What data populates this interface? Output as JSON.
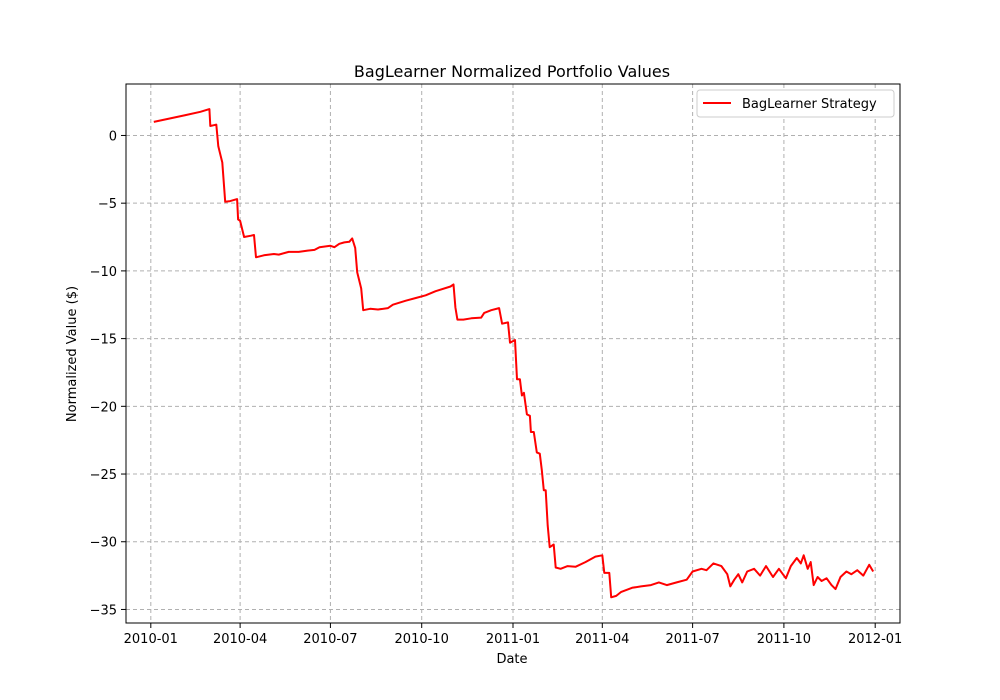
{
  "chart_data": {
    "type": "line",
    "title": "BagLearner Normalized Portfolio Values",
    "xlabel": "Date",
    "ylabel": "Normalized Value ($)",
    "xlim": [
      "2009-12-07",
      "2012-01-26"
    ],
    "ylim": [
      -36,
      3.8
    ],
    "grid": true,
    "legend_position": "top-right",
    "x_ticks": [
      "2010-01",
      "2010-04",
      "2010-07",
      "2010-10",
      "2011-01",
      "2011-04",
      "2011-07",
      "2011-10",
      "2012-01"
    ],
    "y_ticks": [
      0,
      -5,
      -10,
      -15,
      -20,
      -25,
      -30,
      -35
    ],
    "series": [
      {
        "name": "BagLearner Strategy",
        "color": "#ff0000",
        "points": [
          [
            "2010-01-04",
            1.0
          ],
          [
            "2010-01-20",
            1.25
          ],
          [
            "2010-02-05",
            1.5
          ],
          [
            "2010-02-20",
            1.75
          ],
          [
            "2010-03-01",
            1.95
          ],
          [
            "2010-03-02",
            0.7
          ],
          [
            "2010-03-05",
            0.75
          ],
          [
            "2010-03-08",
            0.8
          ],
          [
            "2010-03-10",
            -0.8
          ],
          [
            "2010-03-14",
            -2.0
          ],
          [
            "2010-03-17",
            -4.9
          ],
          [
            "2010-03-22",
            -4.85
          ],
          [
            "2010-03-29",
            -4.7
          ],
          [
            "2010-03-30",
            -6.2
          ],
          [
            "2010-04-01",
            -6.3
          ],
          [
            "2010-04-05",
            -7.5
          ],
          [
            "2010-04-12",
            -7.4
          ],
          [
            "2010-04-15",
            -7.35
          ],
          [
            "2010-04-17",
            -9.0
          ],
          [
            "2010-04-25",
            -8.85
          ],
          [
            "2010-05-05",
            -8.75
          ],
          [
            "2010-05-10",
            -8.8
          ],
          [
            "2010-05-20",
            -8.6
          ],
          [
            "2010-05-30",
            -8.6
          ],
          [
            "2010-06-08",
            -8.5
          ],
          [
            "2010-06-15",
            -8.45
          ],
          [
            "2010-06-20",
            -8.25
          ],
          [
            "2010-07-01",
            -8.15
          ],
          [
            "2010-07-05",
            -8.25
          ],
          [
            "2010-07-10",
            -8.0
          ],
          [
            "2010-07-15",
            -7.9
          ],
          [
            "2010-07-20",
            -7.85
          ],
          [
            "2010-07-23",
            -7.6
          ],
          [
            "2010-07-26",
            -8.3
          ],
          [
            "2010-07-28",
            -10.1
          ],
          [
            "2010-08-01",
            -11.3
          ],
          [
            "2010-08-03",
            -12.9
          ],
          [
            "2010-08-10",
            -12.8
          ],
          [
            "2010-08-18",
            -12.85
          ],
          [
            "2010-08-28",
            -12.75
          ],
          [
            "2010-09-02",
            -12.5
          ],
          [
            "2010-09-15",
            -12.2
          ],
          [
            "2010-09-25",
            -12.0
          ],
          [
            "2010-10-05",
            -11.8
          ],
          [
            "2010-10-15",
            -11.5
          ],
          [
            "2010-10-30",
            -11.15
          ],
          [
            "2010-11-02",
            -11.0
          ],
          [
            "2010-11-04",
            -12.7
          ],
          [
            "2010-11-06",
            -13.6
          ],
          [
            "2010-11-12",
            -13.6
          ],
          [
            "2010-11-20",
            -13.5
          ],
          [
            "2010-11-30",
            -13.45
          ],
          [
            "2010-12-03",
            -13.1
          ],
          [
            "2010-12-10",
            -12.9
          ],
          [
            "2010-12-18",
            -12.75
          ],
          [
            "2010-12-21",
            -13.9
          ],
          [
            "2010-12-27",
            -13.8
          ],
          [
            "2010-12-29",
            -15.3
          ],
          [
            "2011-01-03",
            -15.1
          ],
          [
            "2011-01-05",
            -18.0
          ],
          [
            "2011-01-08",
            -18.0
          ],
          [
            "2011-01-10",
            -19.2
          ],
          [
            "2011-01-12",
            -19.0
          ],
          [
            "2011-01-15",
            -20.6
          ],
          [
            "2011-01-18",
            -20.7
          ],
          [
            "2011-01-19",
            -21.9
          ],
          [
            "2011-01-22",
            -21.9
          ],
          [
            "2011-01-25",
            -23.4
          ],
          [
            "2011-01-28",
            -23.5
          ],
          [
            "2011-01-30",
            -24.7
          ],
          [
            "2011-02-01",
            -26.2
          ],
          [
            "2011-02-03",
            -26.2
          ],
          [
            "2011-02-05",
            -28.8
          ],
          [
            "2011-02-07",
            -30.4
          ],
          [
            "2011-02-11",
            -30.2
          ],
          [
            "2011-02-13",
            -31.9
          ],
          [
            "2011-02-18",
            -32.0
          ],
          [
            "2011-02-25",
            -31.8
          ],
          [
            "2011-03-05",
            -31.85
          ],
          [
            "2011-03-15",
            -31.5
          ],
          [
            "2011-03-25",
            -31.1
          ],
          [
            "2011-04-01",
            -31.0
          ],
          [
            "2011-04-03",
            -32.3
          ],
          [
            "2011-04-08",
            -32.3
          ],
          [
            "2011-04-10",
            -34.1
          ],
          [
            "2011-04-15",
            -34.0
          ],
          [
            "2011-04-20",
            -33.7
          ],
          [
            "2011-05-01",
            -33.4
          ],
          [
            "2011-05-10",
            -33.3
          ],
          [
            "2011-05-20",
            -33.2
          ],
          [
            "2011-05-28",
            -33.0
          ],
          [
            "2011-06-05",
            -33.2
          ],
          [
            "2011-06-15",
            -33.0
          ],
          [
            "2011-06-25",
            -32.8
          ],
          [
            "2011-07-01",
            -32.2
          ],
          [
            "2011-07-10",
            -32.0
          ],
          [
            "2011-07-15",
            -32.1
          ],
          [
            "2011-07-22",
            -31.6
          ],
          [
            "2011-07-30",
            -31.8
          ],
          [
            "2011-08-05",
            -32.4
          ],
          [
            "2011-08-08",
            -33.3
          ],
          [
            "2011-08-12",
            -32.8
          ],
          [
            "2011-08-16",
            -32.4
          ],
          [
            "2011-08-20",
            -33.0
          ],
          [
            "2011-08-25",
            -32.2
          ],
          [
            "2011-09-01",
            -32.0
          ],
          [
            "2011-09-07",
            -32.5
          ],
          [
            "2011-09-13",
            -31.8
          ],
          [
            "2011-09-20",
            -32.6
          ],
          [
            "2011-09-26",
            -32.0
          ],
          [
            "2011-10-03",
            -32.7
          ],
          [
            "2011-10-08",
            -31.8
          ],
          [
            "2011-10-14",
            -31.2
          ],
          [
            "2011-10-18",
            -31.6
          ],
          [
            "2011-10-21",
            -31.0
          ],
          [
            "2011-10-25",
            -32.0
          ],
          [
            "2011-10-28",
            -31.5
          ],
          [
            "2011-10-31",
            -33.2
          ],
          [
            "2011-11-04",
            -32.6
          ],
          [
            "2011-11-08",
            -32.9
          ],
          [
            "2011-11-13",
            -32.7
          ],
          [
            "2011-11-18",
            -33.2
          ],
          [
            "2011-11-22",
            -33.5
          ],
          [
            "2011-11-27",
            -32.6
          ],
          [
            "2011-12-03",
            -32.2
          ],
          [
            "2011-12-08",
            -32.4
          ],
          [
            "2011-12-14",
            -32.1
          ],
          [
            "2011-12-20",
            -32.5
          ],
          [
            "2011-12-26",
            -31.7
          ],
          [
            "2011-12-30",
            -32.2
          ]
        ]
      }
    ]
  }
}
